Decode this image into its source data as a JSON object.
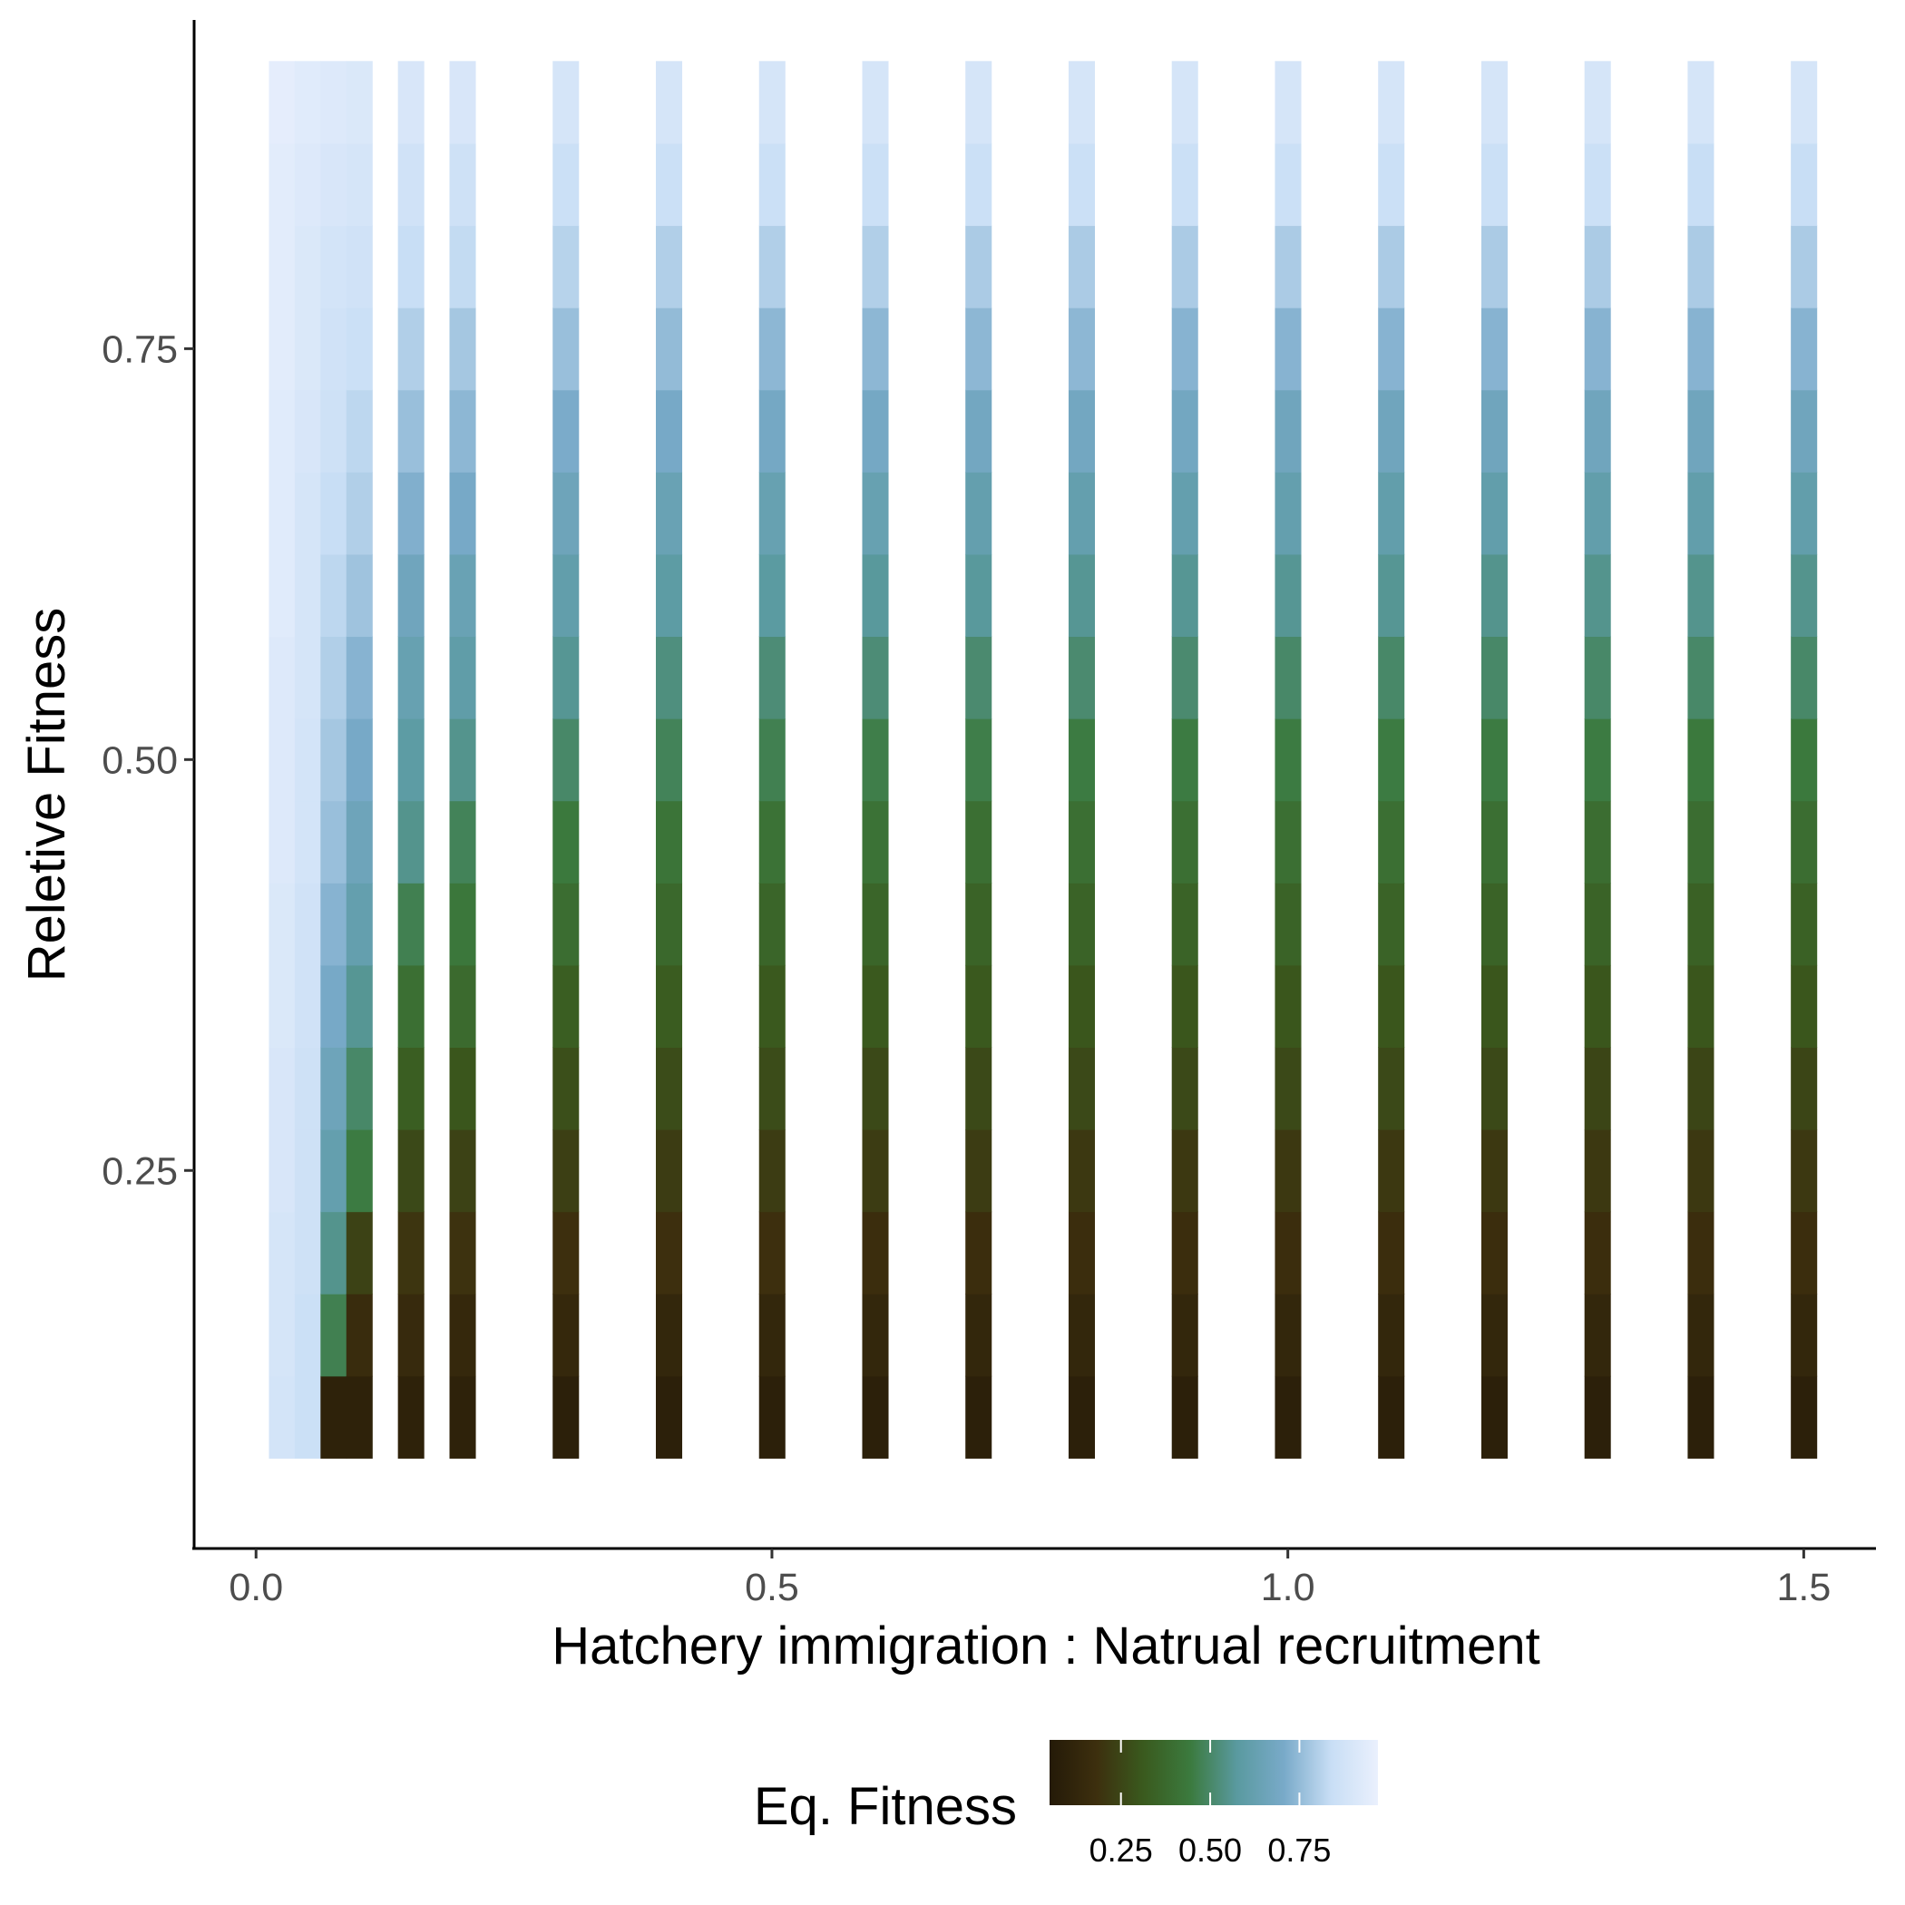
{
  "chart_data": {
    "type": "heatmap",
    "xlabel": "Hatchery immigration : Natrual recruitment",
    "ylabel": "Reletive Fitness",
    "xlim": [
      -0.06,
      1.57
    ],
    "ylim": [
      0.02,
      0.95
    ],
    "x_ticks": [
      0.0,
      0.5,
      1.0,
      1.5
    ],
    "x_tick_labels": [
      "0.0",
      "0.5",
      "1.0",
      "1.5"
    ],
    "y_ticks": [
      0.25,
      0.5,
      0.75
    ],
    "y_tick_labels": [
      "0.25",
      "0.50",
      "0.75"
    ],
    "x": [
      0.025,
      0.05,
      0.075,
      0.1,
      0.15,
      0.2,
      0.3,
      0.4,
      0.5,
      0.6,
      0.7,
      0.8,
      0.9,
      1.0,
      1.1,
      1.2,
      1.3,
      1.4,
      1.5
    ],
    "y": [
      0.1,
      0.15,
      0.2,
      0.25,
      0.3,
      0.35,
      0.4,
      0.45,
      0.5,
      0.55,
      0.6,
      0.65,
      0.7,
      0.75,
      0.8,
      0.85,
      0.9
    ],
    "z": [
      [
        0.88,
        0.89,
        0.89,
        0.9,
        0.9,
        0.91,
        0.91,
        0.92,
        0.92,
        0.92,
        0.93,
        0.93,
        0.93,
        0.94,
        0.94,
        0.94,
        0.95
      ],
      [
        0.85,
        0.85,
        0.86,
        0.86,
        0.86,
        0.87,
        0.87,
        0.88,
        0.88,
        0.89,
        0.89,
        0.89,
        0.9,
        0.91,
        0.91,
        0.92,
        0.93
      ],
      [
        0.1,
        0.47,
        0.55,
        0.62,
        0.66,
        0.7,
        0.73,
        0.76,
        0.78,
        0.8,
        0.82,
        0.84,
        0.86,
        0.87,
        0.88,
        0.9,
        0.92
      ],
      [
        0.1,
        0.16,
        0.24,
        0.45,
        0.5,
        0.56,
        0.62,
        0.66,
        0.7,
        0.73,
        0.77,
        0.8,
        0.82,
        0.85,
        0.87,
        0.89,
        0.91
      ],
      [
        0.1,
        0.15,
        0.2,
        0.26,
        0.33,
        0.4,
        0.47,
        0.55,
        0.59,
        0.63,
        0.67,
        0.72,
        0.76,
        0.8,
        0.84,
        0.87,
        0.9
      ],
      [
        0.1,
        0.14,
        0.19,
        0.24,
        0.3,
        0.38,
        0.43,
        0.48,
        0.55,
        0.6,
        0.64,
        0.7,
        0.74,
        0.78,
        0.83,
        0.86,
        0.9
      ],
      [
        0.09,
        0.14,
        0.18,
        0.23,
        0.28,
        0.33,
        0.39,
        0.44,
        0.5,
        0.56,
        0.61,
        0.66,
        0.71,
        0.76,
        0.81,
        0.85,
        0.89
      ],
      [
        0.09,
        0.13,
        0.18,
        0.22,
        0.27,
        0.32,
        0.37,
        0.42,
        0.48,
        0.53,
        0.59,
        0.64,
        0.7,
        0.75,
        0.8,
        0.85,
        0.89
      ],
      [
        0.09,
        0.13,
        0.18,
        0.22,
        0.27,
        0.31,
        0.36,
        0.41,
        0.47,
        0.52,
        0.58,
        0.63,
        0.69,
        0.74,
        0.8,
        0.85,
        0.89
      ],
      [
        0.09,
        0.13,
        0.17,
        0.22,
        0.26,
        0.31,
        0.36,
        0.41,
        0.46,
        0.52,
        0.57,
        0.63,
        0.69,
        0.74,
        0.8,
        0.85,
        0.89
      ],
      [
        0.09,
        0.13,
        0.17,
        0.22,
        0.26,
        0.31,
        0.35,
        0.4,
        0.46,
        0.51,
        0.57,
        0.62,
        0.68,
        0.74,
        0.79,
        0.85,
        0.89
      ],
      [
        0.09,
        0.13,
        0.17,
        0.21,
        0.26,
        0.3,
        0.35,
        0.4,
        0.45,
        0.51,
        0.56,
        0.62,
        0.68,
        0.74,
        0.79,
        0.85,
        0.89
      ],
      [
        0.09,
        0.13,
        0.17,
        0.21,
        0.26,
        0.3,
        0.35,
        0.4,
        0.45,
        0.51,
        0.56,
        0.62,
        0.68,
        0.73,
        0.79,
        0.85,
        0.89
      ],
      [
        0.09,
        0.13,
        0.17,
        0.21,
        0.26,
        0.3,
        0.35,
        0.4,
        0.45,
        0.5,
        0.56,
        0.62,
        0.67,
        0.73,
        0.79,
        0.85,
        0.89
      ],
      [
        0.09,
        0.13,
        0.17,
        0.21,
        0.26,
        0.3,
        0.35,
        0.4,
        0.45,
        0.5,
        0.56,
        0.61,
        0.67,
        0.73,
        0.79,
        0.85,
        0.89
      ],
      [
        0.09,
        0.13,
        0.17,
        0.21,
        0.26,
        0.3,
        0.35,
        0.4,
        0.45,
        0.5,
        0.55,
        0.61,
        0.67,
        0.73,
        0.79,
        0.85,
        0.89
      ],
      [
        0.09,
        0.13,
        0.17,
        0.21,
        0.25,
        0.3,
        0.35,
        0.39,
        0.45,
        0.5,
        0.55,
        0.61,
        0.67,
        0.73,
        0.79,
        0.85,
        0.89
      ],
      [
        0.09,
        0.13,
        0.17,
        0.21,
        0.25,
        0.3,
        0.34,
        0.39,
        0.44,
        0.5,
        0.55,
        0.61,
        0.67,
        0.73,
        0.79,
        0.84,
        0.89
      ],
      [
        0.09,
        0.13,
        0.17,
        0.21,
        0.25,
        0.3,
        0.34,
        0.39,
        0.44,
        0.5,
        0.55,
        0.61,
        0.67,
        0.73,
        0.79,
        0.84,
        0.89
      ]
    ],
    "legend": {
      "title": "Eq. Fitness",
      "position": "bottom",
      "ticks": [
        0.25,
        0.5,
        0.75
      ],
      "tick_labels": [
        "0.25",
        "0.50",
        "0.75"
      ],
      "range": [
        0.05,
        0.97
      ],
      "gradient_colors": [
        "#241a08",
        "#3d2f0e",
        "#3a5a1e",
        "#3b7a3e",
        "#5a9aa0",
        "#79aac9",
        "#c8def5",
        "#eaf0fd"
      ]
    },
    "grid": false
  }
}
